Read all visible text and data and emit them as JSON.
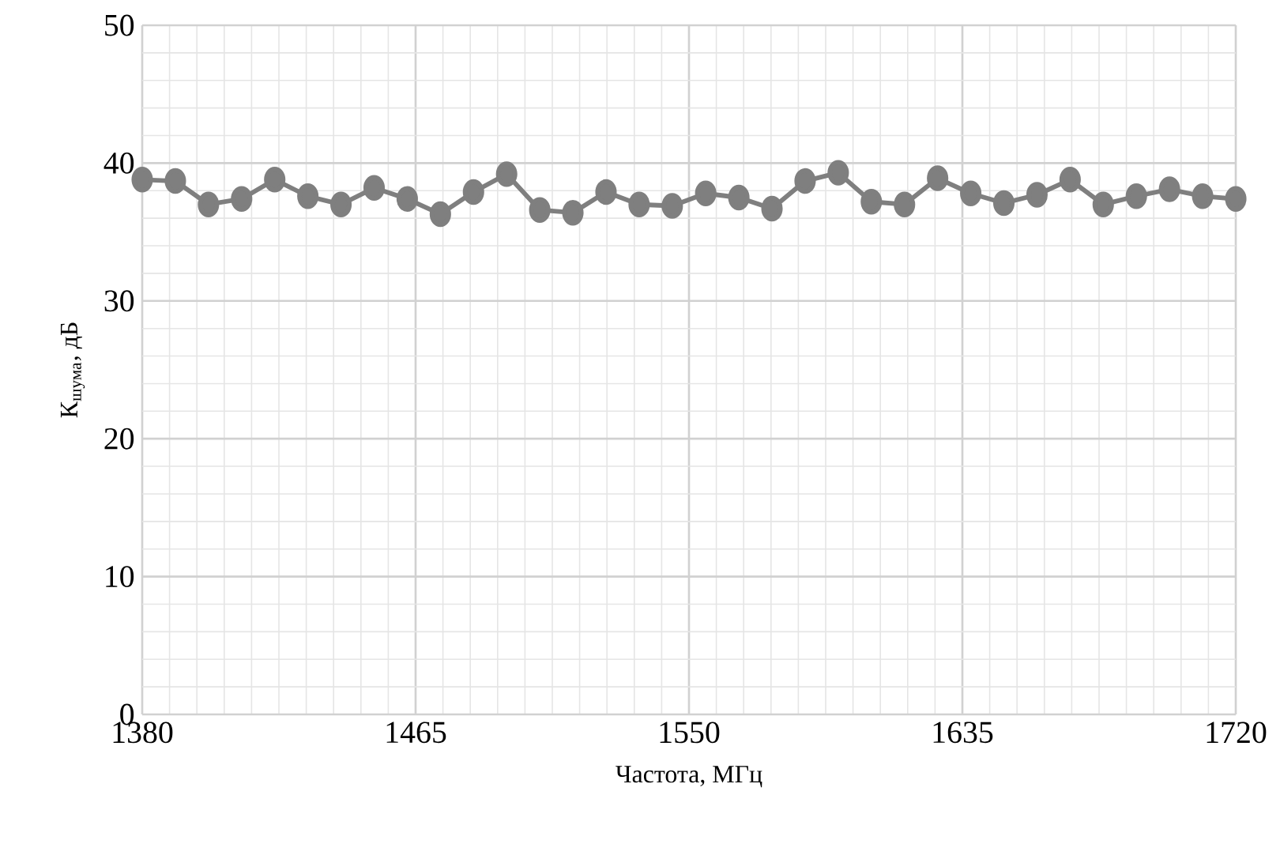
{
  "chart_data": {
    "type": "line",
    "xlabel": "Частота, МГц",
    "ylabel": "К$_{шума}$, дБ",
    "x": [
      1380,
      1390.3,
      1400.6,
      1410.9,
      1421.2,
      1431.5,
      1441.8,
      1452.1,
      1462.4,
      1472.7,
      1483.0,
      1493.3,
      1503.6,
      1513.9,
      1524.2,
      1534.5,
      1544.8,
      1555.2,
      1565.5,
      1575.8,
      1586.1,
      1596.4,
      1606.7,
      1617.0,
      1627.3,
      1637.6,
      1647.9,
      1658.2,
      1668.5,
      1678.8,
      1689.1,
      1699.4,
      1709.7,
      1720
    ],
    "series": [
      {
        "color": "#7f7f7f",
        "values": [
          38.8,
          38.7,
          37.0,
          37.4,
          38.8,
          37.6,
          37.0,
          38.2,
          37.4,
          36.3,
          37.9,
          39.2,
          36.6,
          36.4,
          37.9,
          37.0,
          36.9,
          37.8,
          37.5,
          36.7,
          38.7,
          39.3,
          37.2,
          37.0,
          38.9,
          37.8,
          37.1,
          37.7,
          38.8,
          37.0,
          37.6,
          38.1,
          37.6,
          37.4
        ]
      }
    ],
    "xlim": [
      1380,
      1720
    ],
    "xticks": [
      1380,
      1465,
      1550,
      1635,
      1720
    ],
    "ylim": [
      0,
      50
    ],
    "yticks": [
      0,
      10,
      20,
      30,
      40,
      50
    ],
    "grid": true,
    "marker": "circle",
    "line_style": "solid"
  }
}
